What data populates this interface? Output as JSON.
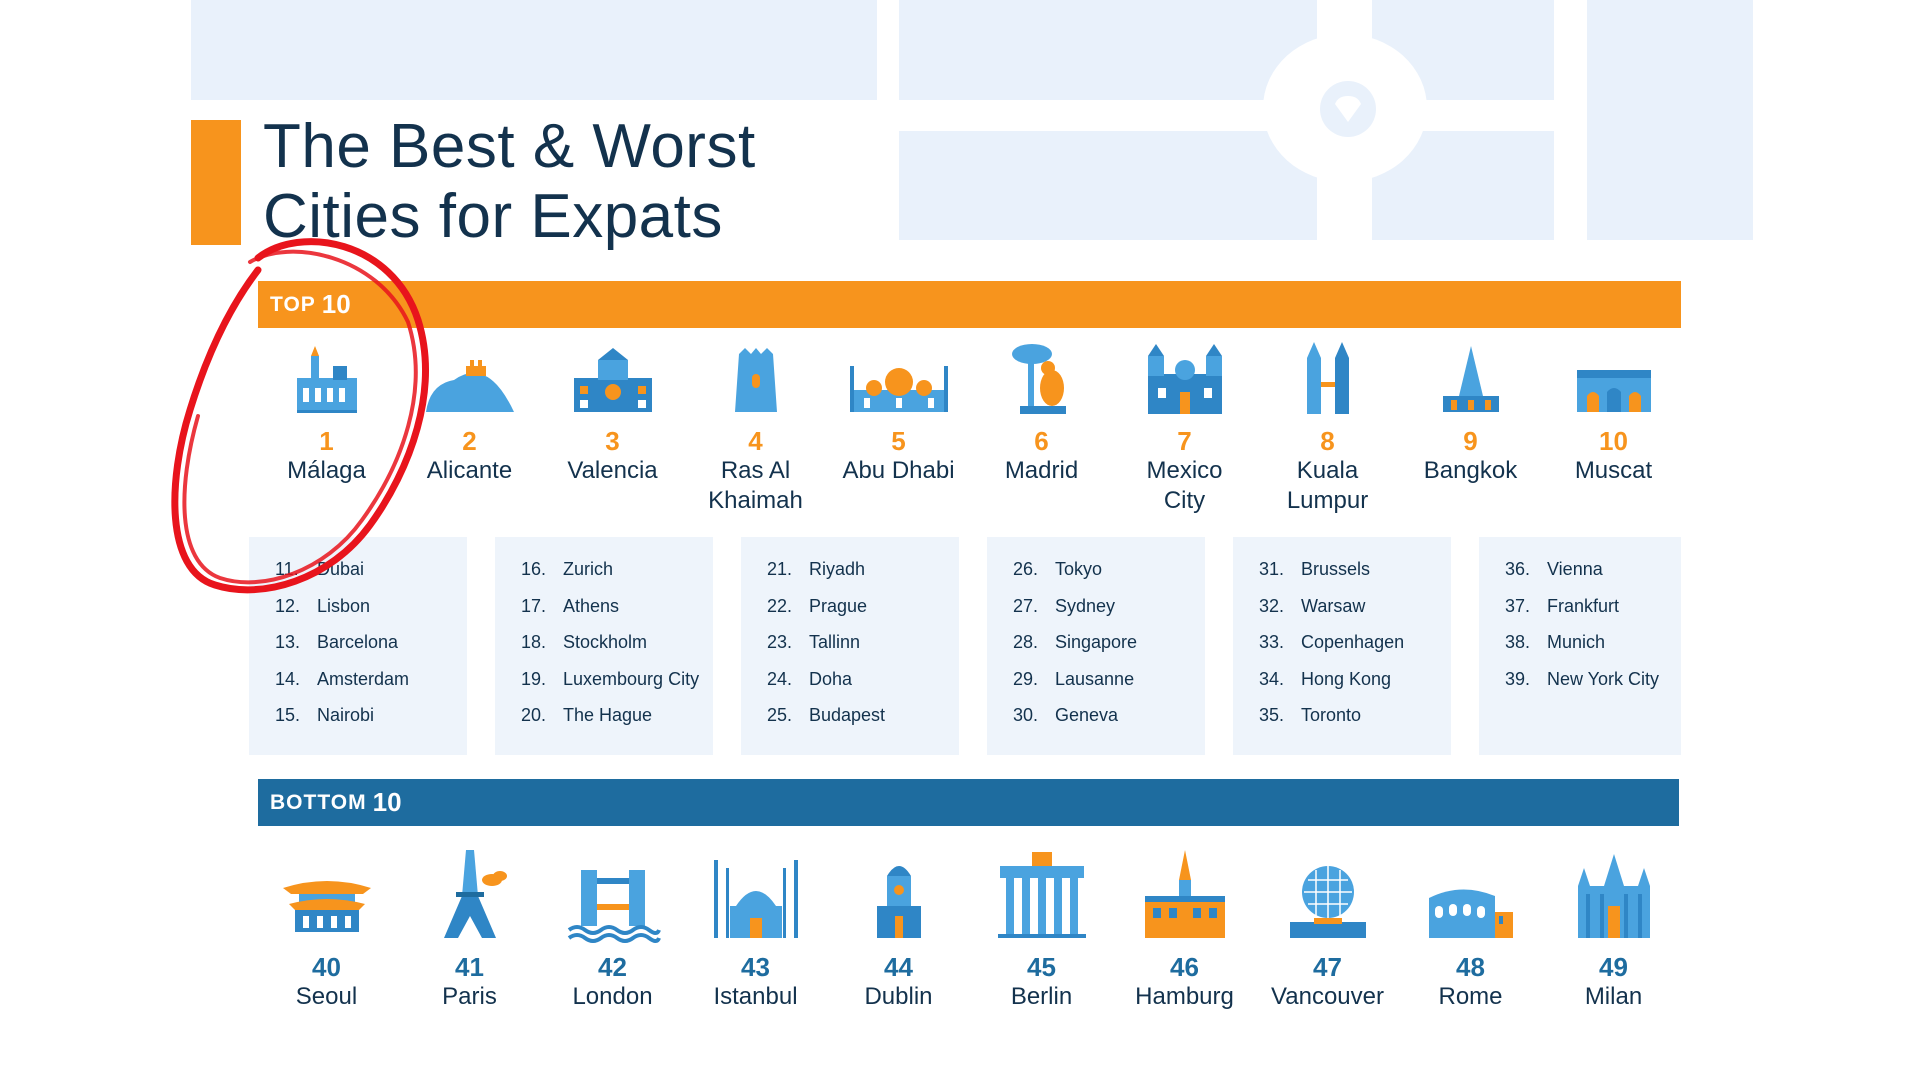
{
  "title": {
    "line1": "The Best & Worst",
    "line2": "Cities for Expats"
  },
  "top_section": {
    "label_small": "TOP",
    "label_number": "10",
    "cities": [
      {
        "rank": "1",
        "name": "Málaga",
        "icon": "malaga-cathedral-icon"
      },
      {
        "rank": "2",
        "name": "Alicante",
        "icon": "alicante-rock-icon"
      },
      {
        "rank": "3",
        "name": "Valencia",
        "icon": "valencia-building-icon"
      },
      {
        "rank": "4",
        "name": "Ras Al Khaimah",
        "name_line1": "Ras Al",
        "name_line2": "Khaimah",
        "icon": "ras-al-khaimah-tower-icon"
      },
      {
        "rank": "5",
        "name": "Abu Dhabi",
        "icon": "abu-dhabi-mosque-icon"
      },
      {
        "rank": "6",
        "name": "Madrid",
        "icon": "madrid-bear-tree-icon"
      },
      {
        "rank": "7",
        "name": "Mexico City",
        "name_line1": "Mexico",
        "name_line2": "City",
        "icon": "mexico-city-cathedral-icon"
      },
      {
        "rank": "8",
        "name": "Kuala Lumpur",
        "name_line1": "Kuala",
        "name_line2": "Lumpur",
        "icon": "kuala-lumpur-towers-icon"
      },
      {
        "rank": "9",
        "name": "Bangkok",
        "icon": "bangkok-temple-icon"
      },
      {
        "rank": "10",
        "name": "Muscat",
        "icon": "muscat-palace-icon"
      }
    ]
  },
  "middle_lists": [
    [
      {
        "num": "11.",
        "name": "Dubai"
      },
      {
        "num": "12.",
        "name": "Lisbon"
      },
      {
        "num": "13.",
        "name": "Barcelona"
      },
      {
        "num": "14.",
        "name": "Amsterdam"
      },
      {
        "num": "15.",
        "name": "Nairobi"
      }
    ],
    [
      {
        "num": "16.",
        "name": "Zurich"
      },
      {
        "num": "17.",
        "name": "Athens"
      },
      {
        "num": "18.",
        "name": "Stockholm"
      },
      {
        "num": "19.",
        "name": "Luxembourg City"
      },
      {
        "num": "20.",
        "name": "The Hague"
      }
    ],
    [
      {
        "num": "21.",
        "name": "Riyadh"
      },
      {
        "num": "22.",
        "name": "Prague"
      },
      {
        "num": "23.",
        "name": "Tallinn"
      },
      {
        "num": "24.",
        "name": "Doha"
      },
      {
        "num": "25.",
        "name": "Budapest"
      }
    ],
    [
      {
        "num": "26.",
        "name": "Tokyo"
      },
      {
        "num": "27.",
        "name": "Sydney"
      },
      {
        "num": "28.",
        "name": "Singapore"
      },
      {
        "num": "29.",
        "name": "Lausanne"
      },
      {
        "num": "30.",
        "name": "Geneva"
      }
    ],
    [
      {
        "num": "31.",
        "name": "Brussels"
      },
      {
        "num": "32.",
        "name": "Warsaw"
      },
      {
        "num": "33.",
        "name": "Copenhagen"
      },
      {
        "num": "34.",
        "name": "Hong Kong"
      },
      {
        "num": "35.",
        "name": "Toronto"
      }
    ],
    [
      {
        "num": "36.",
        "name": "Vienna"
      },
      {
        "num": "37.",
        "name": "Frankfurt"
      },
      {
        "num": "38.",
        "name": "Munich"
      },
      {
        "num": "39.",
        "name": "New York City"
      }
    ]
  ],
  "bottom_section": {
    "label_small": "BOTTOM",
    "label_number": "10",
    "cities": [
      {
        "rank": "40",
        "name": "Seoul",
        "icon": "seoul-palace-icon"
      },
      {
        "rank": "41",
        "name": "Paris",
        "icon": "eiffel-tower-icon"
      },
      {
        "rank": "42",
        "name": "London",
        "icon": "tower-bridge-icon"
      },
      {
        "rank": "43",
        "name": "Istanbul",
        "icon": "blue-mosque-icon"
      },
      {
        "rank": "44",
        "name": "Dublin",
        "icon": "dublin-church-icon"
      },
      {
        "rank": "45",
        "name": "Berlin",
        "icon": "brandenburg-gate-icon"
      },
      {
        "rank": "46",
        "name": "Hamburg",
        "icon": "hamburg-city-hall-icon"
      },
      {
        "rank": "47",
        "name": "Vancouver",
        "icon": "vancouver-dome-icon"
      },
      {
        "rank": "48",
        "name": "Rome",
        "icon": "colosseum-icon"
      },
      {
        "rank": "49",
        "name": "Milan",
        "icon": "milan-cathedral-icon"
      }
    ]
  },
  "colors": {
    "orange": "#f7941d",
    "blue": "#1e6c9f",
    "light_blue": "#4aa3df",
    "navy_text": "#13324d",
    "list_bg": "#eef4fb",
    "annotation_red": "#e8141c"
  }
}
